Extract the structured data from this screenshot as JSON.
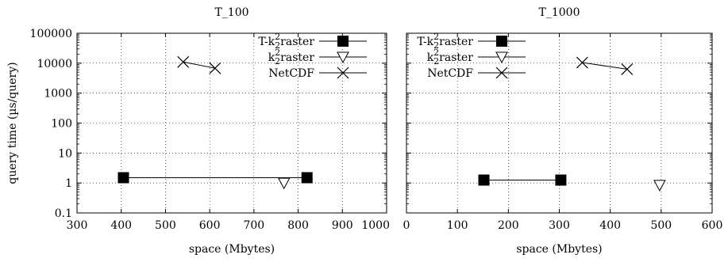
{
  "chart_data": [
    {
      "type": "line",
      "title": "T_100",
      "xlabel": "space (Mbytes)",
      "ylabel": "query time (µs/query)",
      "xlim": [
        300,
        1000
      ],
      "ylim": [
        0.1,
        100000
      ],
      "yscale": "log",
      "grid": true,
      "legend_position": "top-right",
      "xticks": [
        "300",
        "400",
        "500",
        "600",
        "700",
        "800",
        "900",
        "1000"
      ],
      "yticks": [
        "0.1",
        "1",
        "10",
        "100",
        "1000",
        "10000",
        "100000"
      ],
      "series": [
        {
          "name": "T-k2raster",
          "marker": "filled-square",
          "points": [
            [
              405,
              1.5
            ],
            [
              820,
              1.5
            ]
          ]
        },
        {
          "name": "k2raster",
          "marker": "open-triangle-down",
          "points": [
            [
              768,
              1.0
            ]
          ]
        },
        {
          "name": "NetCDF",
          "marker": "x",
          "points": [
            [
              540,
              11000
            ],
            [
              612,
              6800
            ]
          ]
        }
      ]
    },
    {
      "type": "line",
      "title": "T_1000",
      "xlabel": "space (Mbytes)",
      "ylabel": "",
      "xlim": [
        0,
        600
      ],
      "ylim": [
        0.1,
        100000
      ],
      "yscale": "log",
      "grid": true,
      "legend_position": "top-left",
      "xticks": [
        "0",
        "100",
        "200",
        "300",
        "400",
        "500",
        "600"
      ],
      "yticks": [],
      "series": [
        {
          "name": "T-k2raster",
          "marker": "filled-square",
          "points": [
            [
              152,
              1.25
            ],
            [
              303,
              1.25
            ]
          ]
        },
        {
          "name": "k2raster",
          "marker": "open-triangle-down",
          "points": [
            [
              497,
              0.85
            ]
          ]
        },
        {
          "name": "NetCDF",
          "marker": "x",
          "points": [
            [
              345,
              10500
            ],
            [
              433,
              6300
            ]
          ]
        }
      ]
    }
  ]
}
